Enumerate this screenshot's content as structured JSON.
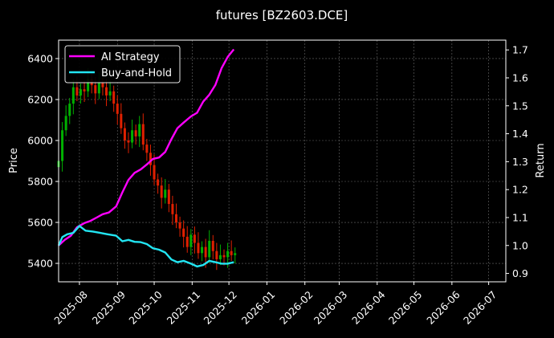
{
  "chart_data": {
    "type": "line",
    "title": "futures [BZ2603.DCE]",
    "xlabel": "",
    "ylabel": "Price",
    "ylabel_right": "Return",
    "grid": true,
    "legend_position": "top-left",
    "xlim": [
      "2025-07-15",
      "2026-07-15"
    ],
    "ylim": [
      5310,
      6490
    ],
    "ylim_right": [
      0.87,
      1.735
    ],
    "x_ticks": [
      "2025-08",
      "2025-09",
      "2025-10",
      "2025-11",
      "2025-12",
      "2026-01",
      "2026-02",
      "2026-03",
      "2026-04",
      "2026-05",
      "2026-06",
      "2026-07"
    ],
    "y_ticks": [
      5400,
      5600,
      5800,
      6000,
      6200,
      6400
    ],
    "y_ticks_right": [
      "0.9",
      "1.0",
      "1.1",
      "1.2",
      "1.3",
      "1.4",
      "1.5",
      "1.6",
      "1.7"
    ],
    "series": [
      {
        "name": "AI Strategy",
        "axis": "right",
        "color": "#ff00ff",
        "points": [
          [
            "2025-07-15",
            1.0
          ],
          [
            "2025-07-20",
            1.02
          ],
          [
            "2025-07-25",
            1.035
          ],
          [
            "2025-07-30",
            1.065
          ],
          [
            "2025-08-05",
            1.08
          ],
          [
            "2025-08-10",
            1.088
          ],
          [
            "2025-08-15",
            1.1
          ],
          [
            "2025-08-20",
            1.112
          ],
          [
            "2025-08-25",
            1.118
          ],
          [
            "2025-08-31",
            1.14
          ],
          [
            "2025-09-05",
            1.19
          ],
          [
            "2025-09-10",
            1.235
          ],
          [
            "2025-09-15",
            1.26
          ],
          [
            "2025-09-20",
            1.272
          ],
          [
            "2025-09-25",
            1.29
          ],
          [
            "2025-09-30",
            1.31
          ],
          [
            "2025-10-05",
            1.315
          ],
          [
            "2025-10-10",
            1.335
          ],
          [
            "2025-10-15",
            1.38
          ],
          [
            "2025-10-20",
            1.42
          ],
          [
            "2025-10-25",
            1.44
          ],
          [
            "2025-10-31",
            1.462
          ],
          [
            "2025-11-05",
            1.475
          ],
          [
            "2025-11-10",
            1.515
          ],
          [
            "2025-11-15",
            1.54
          ],
          [
            "2025-11-20",
            1.575
          ],
          [
            "2025-11-25",
            1.635
          ],
          [
            "2025-11-30",
            1.675
          ],
          [
            "2025-12-05",
            1.702
          ]
        ]
      },
      {
        "name": "Buy-and-Hold",
        "axis": "right",
        "color": "#22e5f2",
        "points": [
          [
            "2025-07-15",
            1.0
          ],
          [
            "2025-07-18",
            1.03
          ],
          [
            "2025-07-22",
            1.04
          ],
          [
            "2025-07-27",
            1.045
          ],
          [
            "2025-08-01",
            1.07
          ],
          [
            "2025-08-06",
            1.053
          ],
          [
            "2025-08-12",
            1.05
          ],
          [
            "2025-08-18",
            1.045
          ],
          [
            "2025-08-24",
            1.04
          ],
          [
            "2025-08-31",
            1.035
          ],
          [
            "2025-09-05",
            1.015
          ],
          [
            "2025-09-10",
            1.02
          ],
          [
            "2025-09-15",
            1.013
          ],
          [
            "2025-09-20",
            1.012
          ],
          [
            "2025-09-25",
            1.005
          ],
          [
            "2025-09-30",
            0.99
          ],
          [
            "2025-10-05",
            0.985
          ],
          [
            "2025-10-10",
            0.975
          ],
          [
            "2025-10-15",
            0.95
          ],
          [
            "2025-10-20",
            0.94
          ],
          [
            "2025-10-25",
            0.945
          ],
          [
            "2025-10-31",
            0.935
          ],
          [
            "2025-11-05",
            0.925
          ],
          [
            "2025-11-10",
            0.93
          ],
          [
            "2025-11-15",
            0.945
          ],
          [
            "2025-11-20",
            0.94
          ],
          [
            "2025-11-25",
            0.935
          ],
          [
            "2025-11-30",
            0.935
          ],
          [
            "2025-12-05",
            0.94
          ]
        ]
      },
      {
        "name": "",
        "type": "candlestick",
        "axis": "left",
        "up_color": "#00b000",
        "down_color": "#e02000",
        "points": [
          [
            "2025-07-15",
            5900
          ],
          [
            "2025-07-18",
            6050
          ],
          [
            "2025-07-21",
            6120
          ],
          [
            "2025-07-24",
            6180
          ],
          [
            "2025-07-27",
            6260
          ],
          [
            "2025-07-30",
            6220
          ],
          [
            "2025-08-02",
            6250
          ],
          [
            "2025-08-05",
            6240
          ],
          [
            "2025-08-08",
            6300
          ],
          [
            "2025-08-11",
            6270
          ],
          [
            "2025-08-14",
            6230
          ],
          [
            "2025-08-17",
            6280
          ],
          [
            "2025-08-20",
            6260
          ],
          [
            "2025-08-23",
            6220
          ],
          [
            "2025-08-26",
            6240
          ],
          [
            "2025-08-29",
            6180
          ],
          [
            "2025-09-01",
            6130
          ],
          [
            "2025-09-04",
            6060
          ],
          [
            "2025-09-07",
            6000
          ],
          [
            "2025-09-10",
            5990
          ],
          [
            "2025-09-13",
            6050
          ],
          [
            "2025-09-16",
            6020
          ],
          [
            "2025-09-19",
            6080
          ],
          [
            "2025-09-22",
            5980
          ],
          [
            "2025-09-25",
            5940
          ],
          [
            "2025-09-28",
            5880
          ],
          [
            "2025-10-01",
            5810
          ],
          [
            "2025-10-04",
            5780
          ],
          [
            "2025-10-07",
            5720
          ],
          [
            "2025-10-10",
            5760
          ],
          [
            "2025-10-13",
            5690
          ],
          [
            "2025-10-16",
            5640
          ],
          [
            "2025-10-19",
            5600
          ],
          [
            "2025-10-22",
            5570
          ],
          [
            "2025-10-25",
            5530
          ],
          [
            "2025-10-28",
            5480
          ],
          [
            "2025-10-31",
            5540
          ],
          [
            "2025-11-03",
            5500
          ],
          [
            "2025-11-06",
            5450
          ],
          [
            "2025-11-09",
            5480
          ],
          [
            "2025-11-12",
            5430
          ],
          [
            "2025-11-15",
            5510
          ],
          [
            "2025-11-18",
            5460
          ],
          [
            "2025-11-21",
            5420
          ],
          [
            "2025-11-24",
            5440
          ],
          [
            "2025-11-27",
            5430
          ],
          [
            "2025-11-30",
            5460
          ],
          [
            "2025-12-03",
            5440
          ],
          [
            "2025-12-06",
            5450
          ]
        ]
      }
    ]
  }
}
